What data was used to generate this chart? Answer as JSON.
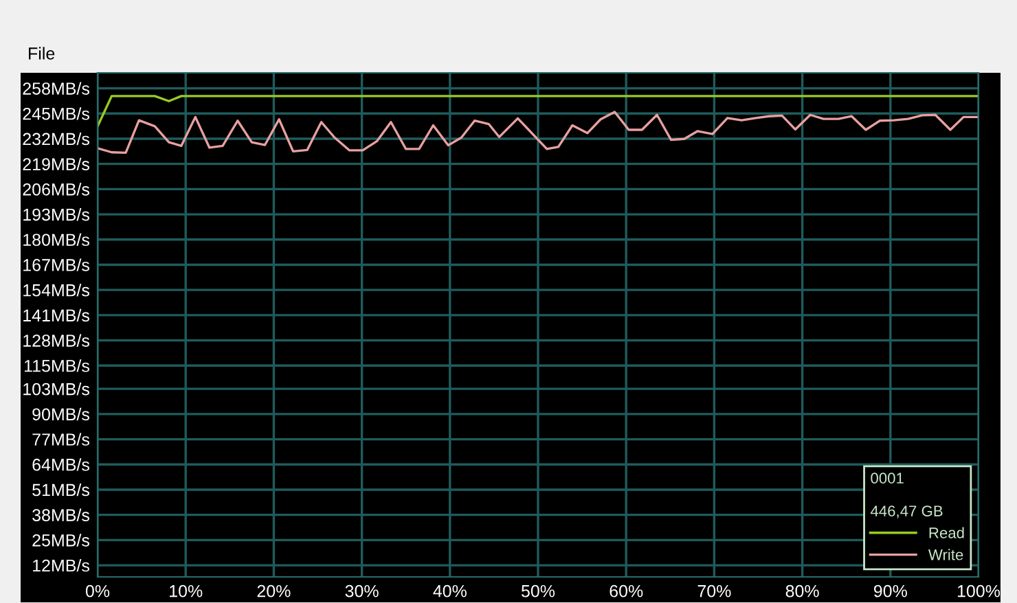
{
  "chart_data": {
    "type": "line",
    "annotations": [
      "File"
    ],
    "legend_title": "0001\n\n446,47 GB",
    "xlim": [
      0,
      100
    ],
    "xticks": [
      {
        "value": 0,
        "label": "0%"
      },
      {
        "value": 10,
        "label": "10%"
      },
      {
        "value": 20,
        "label": "20%"
      },
      {
        "value": 30,
        "label": "30%"
      },
      {
        "value": 40,
        "label": "40%"
      },
      {
        "value": 50,
        "label": "50%"
      },
      {
        "value": 60,
        "label": "60%"
      },
      {
        "value": 70,
        "label": "70%"
      },
      {
        "value": 80,
        "label": "80%"
      },
      {
        "value": 90,
        "label": "90%"
      },
      {
        "value": 100,
        "label": "100%"
      }
    ],
    "ylim": [
      6,
      266
    ],
    "yticks": [
      {
        "value": 12,
        "label": "12MB/s"
      },
      {
        "value": 25,
        "label": "25MB/s"
      },
      {
        "value": 38,
        "label": "38MB/s"
      },
      {
        "value": 51,
        "label": "51MB/s"
      },
      {
        "value": 64,
        "label": "64MB/s"
      },
      {
        "value": 77,
        "label": "77MB/s"
      },
      {
        "value": 90,
        "label": "90MB/s"
      },
      {
        "value": 103,
        "label": "103MB/s"
      },
      {
        "value": 115,
        "label": "115MB/s"
      },
      {
        "value": 128,
        "label": "128MB/s"
      },
      {
        "value": 141,
        "label": "141MB/s"
      },
      {
        "value": 154,
        "label": "154MB/s"
      },
      {
        "value": 167,
        "label": "167MB/s"
      },
      {
        "value": 180,
        "label": "180MB/s"
      },
      {
        "value": 193,
        "label": "193MB/s"
      },
      {
        "value": 206,
        "label": "206MB/s"
      },
      {
        "value": 219,
        "label": "219MB/s"
      },
      {
        "value": 232,
        "label": "232MB/s"
      },
      {
        "value": 245,
        "label": "245MB/s"
      },
      {
        "value": 258,
        "label": "258MB/s"
      }
    ],
    "grid": true,
    "legend": "bottom right",
    "marker": "none",
    "line_style": "solid",
    "series": [
      {
        "name": "Read",
        "color": "#99cc22",
        "x": [
          0,
          1.6,
          4.7,
          6.5,
          8.1,
          9.5,
          30,
          60,
          100
        ],
        "values": [
          238.4,
          254,
          254,
          254,
          251.4,
          254,
          254,
          254,
          254
        ]
      },
      {
        "name": "Write",
        "color": "#e8a0a0",
        "x": [
          0,
          1.6,
          3.2,
          4.7,
          6.5,
          8.1,
          9.5,
          11.1,
          12.7,
          14.2,
          15.9,
          17.5,
          19.0,
          20.6,
          22.2,
          23.8,
          25.4,
          26.9,
          28.6,
          30.1,
          31.7,
          33.3,
          35.0,
          36.5,
          38.1,
          39.8,
          41.3,
          42.8,
          44.4,
          45.6,
          47.7,
          51.0,
          52.3,
          53.9,
          55.6,
          57.1,
          58.7,
          60.3,
          61.8,
          63.5,
          65.1,
          66.6,
          68.1,
          69.8,
          71.5,
          73.1,
          74.7,
          76.2,
          77.7,
          79.2,
          80.9,
          82.4,
          84.1,
          85.6,
          87.2,
          88.8,
          90.4,
          92.0,
          93.6,
          95.1,
          96.8,
          98.3,
          100.0
        ],
        "values": [
          227.1,
          225.0,
          224.8,
          241.5,
          238.4,
          230.2,
          228.3,
          243.2,
          227.4,
          228.3,
          241.3,
          230.2,
          228.8,
          242.0,
          225.5,
          226.2,
          240.6,
          232.6,
          226.0,
          226.0,
          230.7,
          240.6,
          226.7,
          226.7,
          238.9,
          228.6,
          232.6,
          241.3,
          239.6,
          232.9,
          242.5,
          226.7,
          227.8,
          238.9,
          234.9,
          242.0,
          245.8,
          236.6,
          236.6,
          244.3,
          231.4,
          231.9,
          235.9,
          234.4,
          242.7,
          241.5,
          242.7,
          243.6,
          243.9,
          236.8,
          244.3,
          242.2,
          242.2,
          243.6,
          236.6,
          241.3,
          241.5,
          242.2,
          244.1,
          244.3,
          236.6,
          243.2,
          243.2
        ]
      }
    ]
  }
}
